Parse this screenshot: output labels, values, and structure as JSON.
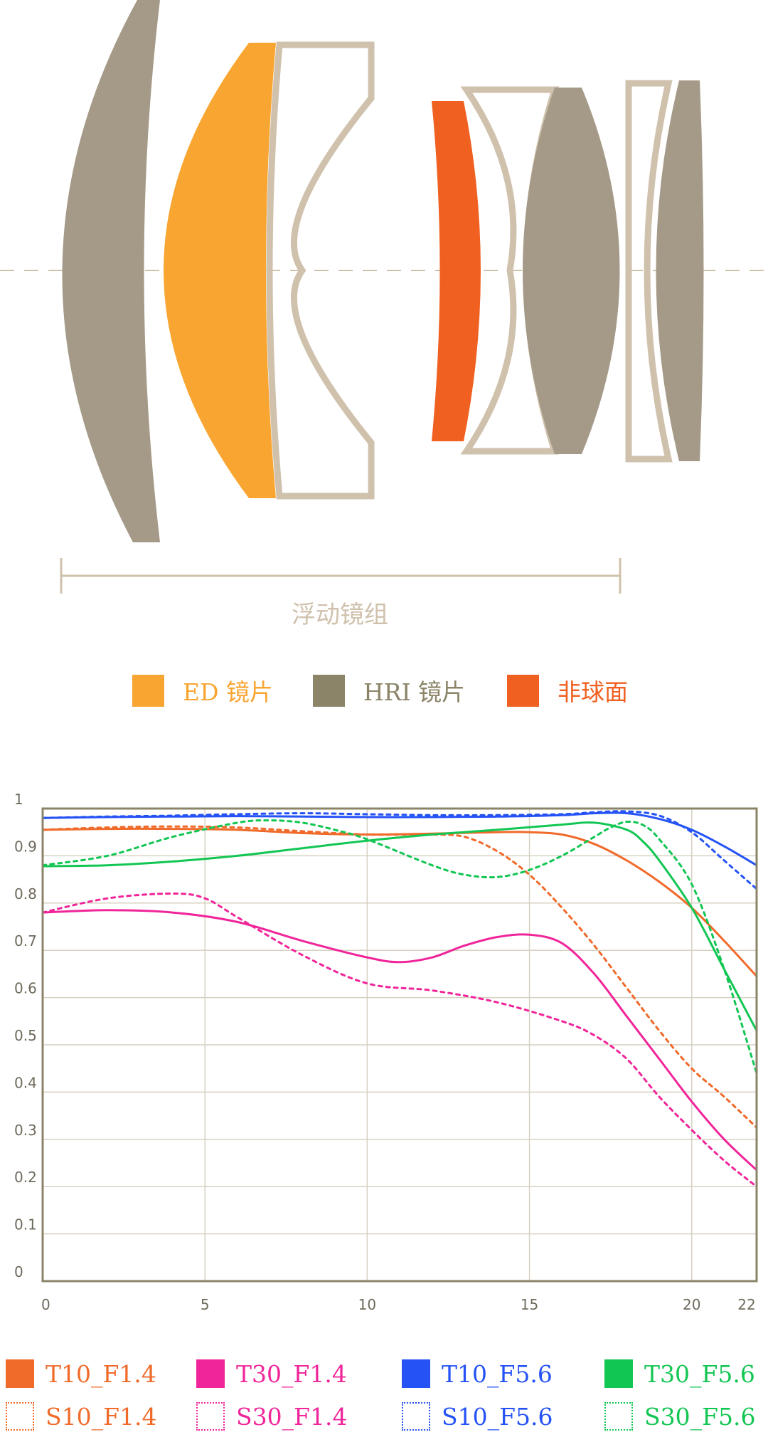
{
  "lens_diagram": {
    "floating_group_label": "浮动镜组",
    "legend": [
      {
        "label": "ED 镜片",
        "color": "#f9a532"
      },
      {
        "label": "HRI 镜片",
        "color": "#8b8468"
      },
      {
        "label": "非球面",
        "color": "#f06020"
      }
    ],
    "colors": {
      "hri_element": "#a49a87",
      "ed_element": "#f9a532",
      "aspheric_element": "#f06020",
      "outline_element": "#cfc1ac",
      "axis": "#cfc1ac"
    }
  },
  "chart_data": {
    "type": "line",
    "title": "",
    "xlabel": "",
    "ylabel": "",
    "xlim": [
      0,
      22
    ],
    "ylim": [
      0,
      1
    ],
    "x_ticks": [
      "0",
      "5",
      "10",
      "15",
      "20",
      "22"
    ],
    "y_ticks": [
      "0",
      "0.1",
      "0.2",
      "0.3",
      "0.4",
      "0.5",
      "0.6",
      "0.7",
      "0.8",
      "0.9",
      "1"
    ],
    "grid": true,
    "legend_position": "bottom",
    "series": [
      {
        "name": "T10_F1.4",
        "color": "#f06a2a",
        "dash": false,
        "x": [
          0,
          2,
          4,
          6,
          8,
          10,
          12,
          14,
          15,
          16,
          17,
          18,
          19,
          20,
          21,
          22
        ],
        "y": [
          0.955,
          0.957,
          0.957,
          0.955,
          0.948,
          0.945,
          0.947,
          0.95,
          0.95,
          0.945,
          0.925,
          0.89,
          0.845,
          0.79,
          0.72,
          0.645
        ]
      },
      {
        "name": "S10_F1.4",
        "color": "#f06a2a",
        "dash": true,
        "x": [
          0,
          2,
          4,
          6,
          8,
          10,
          12,
          13,
          14,
          15,
          16,
          17,
          18,
          19,
          20,
          21,
          22
        ],
        "y": [
          0.955,
          0.96,
          0.962,
          0.96,
          0.952,
          0.945,
          0.945,
          0.94,
          0.91,
          0.86,
          0.79,
          0.71,
          0.62,
          0.53,
          0.45,
          0.39,
          0.325
        ]
      },
      {
        "name": "T30_F1.4",
        "color": "#f0259a",
        "dash": false,
        "x": [
          0,
          2,
          4,
          6,
          8,
          10,
          11,
          12,
          13,
          14,
          15,
          16,
          17,
          18,
          19,
          20,
          21,
          22
        ],
        "y": [
          0.78,
          0.785,
          0.78,
          0.76,
          0.72,
          0.685,
          0.675,
          0.685,
          0.71,
          0.728,
          0.733,
          0.715,
          0.65,
          0.56,
          0.47,
          0.38,
          0.3,
          0.235
        ]
      },
      {
        "name": "S30_F1.4",
        "color": "#f0259a",
        "dash": true,
        "x": [
          0,
          2,
          4,
          5,
          6,
          8,
          10,
          12,
          14,
          16,
          17,
          18,
          19,
          20,
          21,
          22
        ],
        "y": [
          0.78,
          0.81,
          0.82,
          0.81,
          0.77,
          0.69,
          0.63,
          0.615,
          0.59,
          0.55,
          0.52,
          0.47,
          0.39,
          0.32,
          0.255,
          0.2
        ]
      },
      {
        "name": "T10_F5.6",
        "color": "#2452f5",
        "dash": false,
        "x": [
          0,
          2,
          4,
          6,
          8,
          10,
          12,
          14,
          16,
          17,
          18,
          19,
          20,
          21,
          22
        ],
        "y": [
          0.98,
          0.982,
          0.983,
          0.984,
          0.983,
          0.982,
          0.982,
          0.983,
          0.986,
          0.99,
          0.99,
          0.978,
          0.955,
          0.92,
          0.88
        ]
      },
      {
        "name": "S10_F5.6",
        "color": "#2452f5",
        "dash": true,
        "x": [
          0,
          2,
          4,
          6,
          8,
          10,
          12,
          14,
          16,
          17,
          18,
          19,
          20,
          21,
          22
        ],
        "y": [
          0.98,
          0.983,
          0.985,
          0.988,
          0.99,
          0.988,
          0.986,
          0.986,
          0.988,
          0.992,
          0.994,
          0.985,
          0.95,
          0.89,
          0.83
        ]
      },
      {
        "name": "T30_F5.6",
        "color": "#12c653",
        "dash": false,
        "x": [
          0,
          2,
          4,
          6,
          8,
          10,
          12,
          14,
          16,
          17,
          18,
          18.5,
          19,
          20,
          21,
          22
        ],
        "y": [
          0.878,
          0.88,
          0.888,
          0.9,
          0.916,
          0.932,
          0.945,
          0.955,
          0.966,
          0.97,
          0.955,
          0.93,
          0.89,
          0.79,
          0.66,
          0.53
        ]
      },
      {
        "name": "S30_F5.6",
        "color": "#12c653",
        "dash": true,
        "x": [
          0,
          2,
          4,
          6,
          7,
          8,
          9,
          10,
          12,
          13,
          14,
          15,
          16,
          17,
          17.5,
          18,
          18.5,
          19,
          20,
          21,
          22
        ],
        "y": [
          0.88,
          0.9,
          0.94,
          0.97,
          0.975,
          0.97,
          0.955,
          0.935,
          0.88,
          0.86,
          0.855,
          0.87,
          0.9,
          0.94,
          0.96,
          0.972,
          0.965,
          0.935,
          0.84,
          0.66,
          0.44
        ]
      }
    ]
  }
}
